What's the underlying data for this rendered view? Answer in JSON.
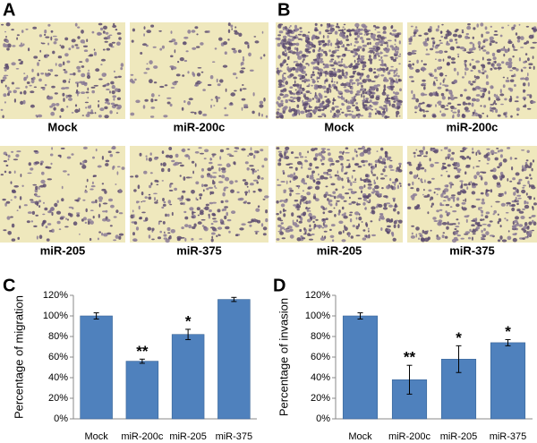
{
  "panels": [
    {
      "label": "A",
      "captions": [
        "Mock",
        "miR-200c",
        "miR-205",
        "miR-375"
      ]
    },
    {
      "label": "B",
      "captions": [
        "Mock",
        "miR-200c",
        "miR-205",
        "miR-375"
      ]
    }
  ],
  "chart_data": [
    {
      "type": "bar",
      "panel_label": "C",
      "y_label": "Percentage of migration",
      "categories": [
        "Mock",
        "miR-200c",
        "miR-205",
        "miR-375"
      ],
      "values": [
        100,
        56,
        82,
        116
      ],
      "errors": [
        3,
        2,
        5,
        2
      ],
      "annotations": [
        null,
        "**",
        "*",
        null
      ],
      "color": "#4f81bd",
      "ylim": [
        0,
        120
      ],
      "yticks": [
        {
          "value": 0,
          "label": "0%"
        },
        {
          "value": 20,
          "label": "20%"
        },
        {
          "value": 40,
          "label": "40%"
        },
        {
          "value": 60,
          "label": "60%"
        },
        {
          "value": 80,
          "label": "80%"
        },
        {
          "value": 100,
          "label": "100%"
        },
        {
          "value": 120,
          "label": "120%"
        }
      ]
    },
    {
      "type": "bar",
      "panel_label": "D",
      "y_label": "Percentage of invasion",
      "categories": [
        "Mock",
        "miR-200c",
        "miR-205",
        "miR-375"
      ],
      "values": [
        100,
        38,
        58,
        74
      ],
      "errors": [
        3,
        14,
        13,
        3
      ],
      "annotations": [
        null,
        "**",
        "*",
        "*"
      ],
      "color": "#4f81bd",
      "ylim": [
        0,
        120
      ],
      "yticks": [
        {
          "value": 0,
          "label": "0%"
        },
        {
          "value": 20,
          "label": "20%"
        },
        {
          "value": 40,
          "label": "40%"
        },
        {
          "value": 60,
          "label": "60%"
        },
        {
          "value": 80,
          "label": "80%"
        },
        {
          "value": 100,
          "label": "100%"
        },
        {
          "value": 120,
          "label": "120%"
        }
      ]
    }
  ]
}
